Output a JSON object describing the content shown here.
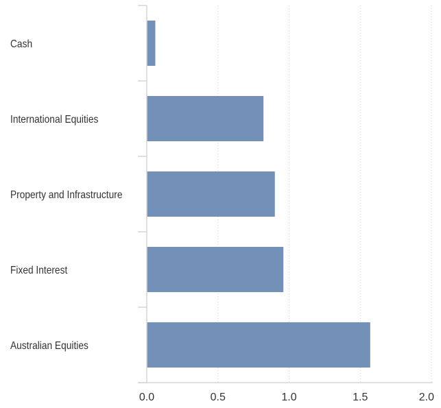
{
  "chart_data": {
    "type": "bar",
    "orientation": "horizontal",
    "categories": [
      "Cash",
      "International Equities",
      "Property and Infrastructure",
      "Fixed Interest",
      "Australian Equities"
    ],
    "values": [
      0.06,
      0.82,
      0.9,
      0.96,
      1.57
    ],
    "x_ticks": [
      "0.0",
      "0.5",
      "1.0",
      "1.5",
      "2.0"
    ],
    "xlim": [
      0,
      2
    ],
    "grid": true,
    "title": "",
    "xlabel": "",
    "ylabel": "",
    "bar_color": "#7391b8"
  }
}
